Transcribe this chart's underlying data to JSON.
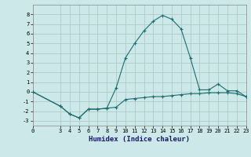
{
  "xlabel": "Humidex (Indice chaleur)",
  "background_color": "#cce8e8",
  "grid_color": "#b0c8c8",
  "line_color": "#1a6e6e",
  "xlim": [
    0,
    23
  ],
  "ylim": [
    -3.5,
    9.0
  ],
  "xticks": [
    0,
    3,
    4,
    5,
    6,
    7,
    8,
    9,
    10,
    11,
    12,
    13,
    14,
    15,
    16,
    17,
    18,
    19,
    20,
    21,
    22,
    23
  ],
  "yticks": [
    -3,
    -2,
    -1,
    0,
    1,
    2,
    3,
    4,
    5,
    6,
    7,
    8
  ],
  "series1_x": [
    0,
    3,
    4,
    5,
    6,
    7,
    8,
    9,
    10,
    11,
    12,
    13,
    14,
    15,
    16,
    17,
    18,
    19,
    20,
    21,
    22,
    23
  ],
  "series1_y": [
    0.0,
    -1.5,
    -2.3,
    -2.7,
    -1.8,
    -1.8,
    -1.7,
    -1.6,
    -0.8,
    -0.7,
    -0.6,
    -0.5,
    -0.5,
    -0.4,
    -0.3,
    -0.2,
    -0.2,
    -0.1,
    -0.1,
    -0.1,
    -0.2,
    -0.5
  ],
  "series2_x": [
    0,
    3,
    4,
    5,
    6,
    7,
    8,
    9,
    10,
    11,
    12,
    13,
    14,
    15,
    16,
    17,
    18,
    19,
    20,
    21,
    22,
    23
  ],
  "series2_y": [
    0.0,
    -1.5,
    -2.3,
    -2.7,
    -1.8,
    -1.8,
    -1.7,
    0.4,
    3.5,
    5.0,
    6.3,
    7.3,
    7.9,
    7.5,
    6.5,
    3.5,
    0.2,
    0.2,
    0.8,
    0.1,
    0.1,
    -0.5
  ]
}
